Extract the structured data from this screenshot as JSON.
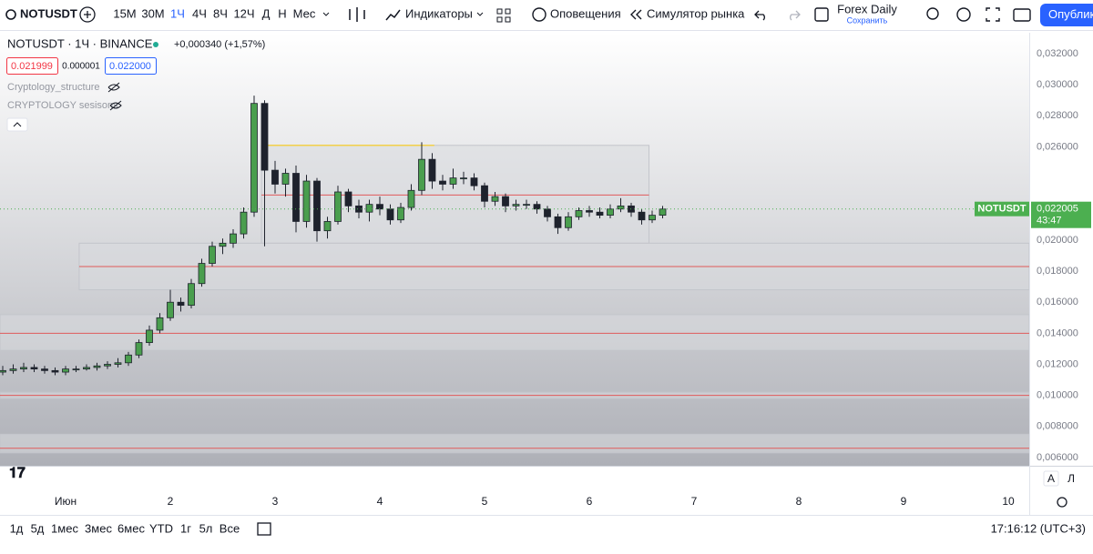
{
  "toolbar": {
    "symbol": "NOTUSDT",
    "intervals": [
      "15M",
      "30M",
      "1Ч",
      "4Ч",
      "8Ч",
      "12Ч",
      "Д",
      "Н",
      "Мес"
    ],
    "indicators": "Индикаторы",
    "alerts": "Оповещения",
    "replay": "Симулятор рынка",
    "layout_name": "Forex Daily",
    "layout_status": "Сохранить",
    "publish": "Опубликовать"
  },
  "legend": {
    "title": "NOTUSDT · 1Ч · BINANCE",
    "change": "+0,000340 (+1,57%)",
    "bid": "0.021999",
    "spread": "0.000001",
    "ask": "0.022000",
    "indicators": [
      "Cryptology_structure",
      "CRYPTOLOGY sesisons"
    ]
  },
  "price_label": {
    "symbol": "NOTUSDT",
    "price": "0,022005",
    "countdown": "43:47"
  },
  "chart_data": {
    "type": "candlestick",
    "up_color": "#4a9e4e",
    "down_color": "#1e222d",
    "zone_color": "#d9dadf",
    "level_color": "#e05a5a",
    "highlight_color": "#f2d04a",
    "xlim": [
      0.374,
      10.2
    ],
    "xticks": [
      {
        "value": 1,
        "label": "Июн"
      },
      2,
      3,
      4,
      5,
      6,
      7,
      8,
      9,
      10
    ],
    "ylim": [
      0.00547,
      0.03335
    ],
    "yticks": [
      {
        "value": 0.006,
        "label": "0,006000"
      },
      {
        "value": 0.008,
        "label": "0,008000"
      },
      {
        "value": 0.01,
        "label": "0,010000"
      },
      {
        "value": 0.012,
        "label": "0,012000"
      },
      {
        "value": 0.014,
        "label": "0,014000"
      },
      {
        "value": 0.016,
        "label": "0,016000"
      },
      {
        "value": 0.018,
        "label": "0,018000"
      },
      {
        "value": 0.02,
        "label": "0,020000"
      },
      {
        "value": 0.026,
        "label": "0,026000"
      },
      {
        "value": 0.028,
        "label": "0,028000"
      },
      {
        "value": 0.03,
        "label": "0,030000"
      },
      {
        "value": 0.032,
        "label": "0,032000"
      }
    ],
    "current_price": 0.022005,
    "x": [
      0.4,
      0.5,
      0.6,
      0.7,
      0.8,
      0.9,
      1.0,
      1.1,
      1.2,
      1.3,
      1.4,
      1.5,
      1.6,
      1.7,
      1.8,
      1.9,
      2.0,
      2.1,
      2.2,
      2.3,
      2.4,
      2.5,
      2.6,
      2.7,
      2.8,
      2.9,
      3.0,
      3.1,
      3.2,
      3.3,
      3.4,
      3.5,
      3.6,
      3.7,
      3.8,
      3.9,
      4.0,
      4.1,
      4.2,
      4.3,
      4.4,
      4.5,
      4.6,
      4.7,
      4.8,
      4.9,
      5.0,
      5.1,
      5.2,
      5.3,
      5.4,
      5.5,
      5.6,
      5.7,
      5.8,
      5.9,
      6.0,
      6.1,
      6.2,
      6.3,
      6.4,
      6.5,
      6.6,
      6.7
    ],
    "candles": [
      [
        0.0115,
        0.0119,
        0.0113,
        0.0116
      ],
      [
        0.0116,
        0.012,
        0.0114,
        0.0117
      ],
      [
        0.0117,
        0.0121,
        0.0115,
        0.0118
      ],
      [
        0.0118,
        0.012,
        0.0115,
        0.0117
      ],
      [
        0.0117,
        0.0119,
        0.0114,
        0.0116
      ],
      [
        0.0116,
        0.0118,
        0.0113,
        0.0115
      ],
      [
        0.0115,
        0.0119,
        0.0113,
        0.0117
      ],
      [
        0.0117,
        0.0119,
        0.0115,
        0.0117
      ],
      [
        0.0117,
        0.012,
        0.0116,
        0.0118
      ],
      [
        0.0118,
        0.0121,
        0.0116,
        0.0119
      ],
      [
        0.0119,
        0.0122,
        0.0117,
        0.012
      ],
      [
        0.012,
        0.0124,
        0.0118,
        0.0121
      ],
      [
        0.0121,
        0.0128,
        0.0119,
        0.0126
      ],
      [
        0.0126,
        0.0136,
        0.0124,
        0.0134
      ],
      [
        0.0134,
        0.0145,
        0.0132,
        0.0142
      ],
      [
        0.0142,
        0.0153,
        0.014,
        0.015
      ],
      [
        0.015,
        0.0168,
        0.0148,
        0.016
      ],
      [
        0.016,
        0.0163,
        0.0154,
        0.0158
      ],
      [
        0.0158,
        0.0175,
        0.0156,
        0.0172
      ],
      [
        0.0172,
        0.0188,
        0.017,
        0.0185
      ],
      [
        0.0185,
        0.0199,
        0.0183,
        0.0196
      ],
      [
        0.0196,
        0.0201,
        0.0191,
        0.0198
      ],
      [
        0.0198,
        0.0207,
        0.0195,
        0.0204
      ],
      [
        0.0204,
        0.0221,
        0.0201,
        0.0218
      ],
      [
        0.0218,
        0.0293,
        0.0215,
        0.0288
      ],
      [
        0.0288,
        0.029,
        0.0196,
        0.0245
      ],
      [
        0.0245,
        0.0251,
        0.023,
        0.0236
      ],
      [
        0.0236,
        0.0246,
        0.0228,
        0.0243
      ],
      [
        0.0243,
        0.0248,
        0.0205,
        0.0212
      ],
      [
        0.0212,
        0.0242,
        0.0208,
        0.0238
      ],
      [
        0.0238,
        0.024,
        0.0199,
        0.0206
      ],
      [
        0.0206,
        0.0215,
        0.0201,
        0.0212
      ],
      [
        0.0212,
        0.0235,
        0.021,
        0.0231
      ],
      [
        0.0231,
        0.0233,
        0.0218,
        0.0222
      ],
      [
        0.0222,
        0.0226,
        0.0214,
        0.0218
      ],
      [
        0.0218,
        0.0226,
        0.0212,
        0.0223
      ],
      [
        0.0223,
        0.0228,
        0.0216,
        0.022
      ],
      [
        0.022,
        0.0223,
        0.021,
        0.0213
      ],
      [
        0.0213,
        0.0224,
        0.0211,
        0.0221
      ],
      [
        0.0221,
        0.0236,
        0.0219,
        0.0232
      ],
      [
        0.0232,
        0.0263,
        0.0229,
        0.0252
      ],
      [
        0.0252,
        0.0256,
        0.0233,
        0.0238
      ],
      [
        0.0238,
        0.0242,
        0.0232,
        0.0236
      ],
      [
        0.0236,
        0.0246,
        0.0233,
        0.024
      ],
      [
        0.024,
        0.0244,
        0.0236,
        0.024
      ],
      [
        0.024,
        0.0243,
        0.0232,
        0.0235
      ],
      [
        0.0235,
        0.0237,
        0.0221,
        0.0225
      ],
      [
        0.0225,
        0.0231,
        0.0222,
        0.0228
      ],
      [
        0.0228,
        0.023,
        0.0218,
        0.0222
      ],
      [
        0.0222,
        0.0226,
        0.0219,
        0.0223
      ],
      [
        0.0223,
        0.0226,
        0.022,
        0.0223
      ],
      [
        0.0223,
        0.0225,
        0.0217,
        0.022
      ],
      [
        0.022,
        0.0222,
        0.0212,
        0.0215
      ],
      [
        0.0215,
        0.0217,
        0.0204,
        0.0208
      ],
      [
        0.0208,
        0.0218,
        0.0206,
        0.0215
      ],
      [
        0.0215,
        0.0221,
        0.0213,
        0.0219
      ],
      [
        0.0219,
        0.0222,
        0.0215,
        0.0218
      ],
      [
        0.0218,
        0.0221,
        0.0214,
        0.0216
      ],
      [
        0.0216,
        0.0223,
        0.0214,
        0.022
      ],
      [
        0.022,
        0.0227,
        0.0218,
        0.0222
      ],
      [
        0.0222,
        0.0224,
        0.0215,
        0.0218
      ],
      [
        0.0218,
        0.022,
        0.021,
        0.0213
      ],
      [
        0.0213,
        0.0219,
        0.0211,
        0.0216
      ],
      [
        0.0216,
        0.0222,
        0.0214,
        0.022
      ]
    ],
    "zones": [
      {
        "x0": 2.87,
        "x1": 6.57,
        "top": 0.0261,
        "bottom": 0.0198,
        "mid": 0.0229
      },
      {
        "x0": 1.13,
        "x1": 10.2,
        "top": 0.0198,
        "bottom": 0.0168,
        "mid": 0.0183
      },
      {
        "x0": 0.374,
        "x1": 10.2,
        "top": 0.0152,
        "bottom": 0.0129,
        "mid": 0.014
      },
      {
        "x0": 0.374,
        "x1": 10.2,
        "top": 0.0102,
        "bottom": 0.0098,
        "mid": 0.01
      },
      {
        "x0": 0.374,
        "x1": 10.2,
        "top": 0.0075,
        "bottom": 0.0063,
        "mid": 0.0066
      }
    ],
    "highlight_line": {
      "x0": 2.87,
      "x1": 4.52,
      "value": 0.0261
    }
  },
  "bottom_bar": {
    "ranges": [
      "1д",
      "5д",
      "1мес",
      "3мес",
      "6мес",
      "YTD",
      "1г",
      "5л",
      "Все"
    ],
    "clock": "17:16:12 (UTC+3)",
    "scale_modes": [
      "A",
      "Л"
    ]
  }
}
